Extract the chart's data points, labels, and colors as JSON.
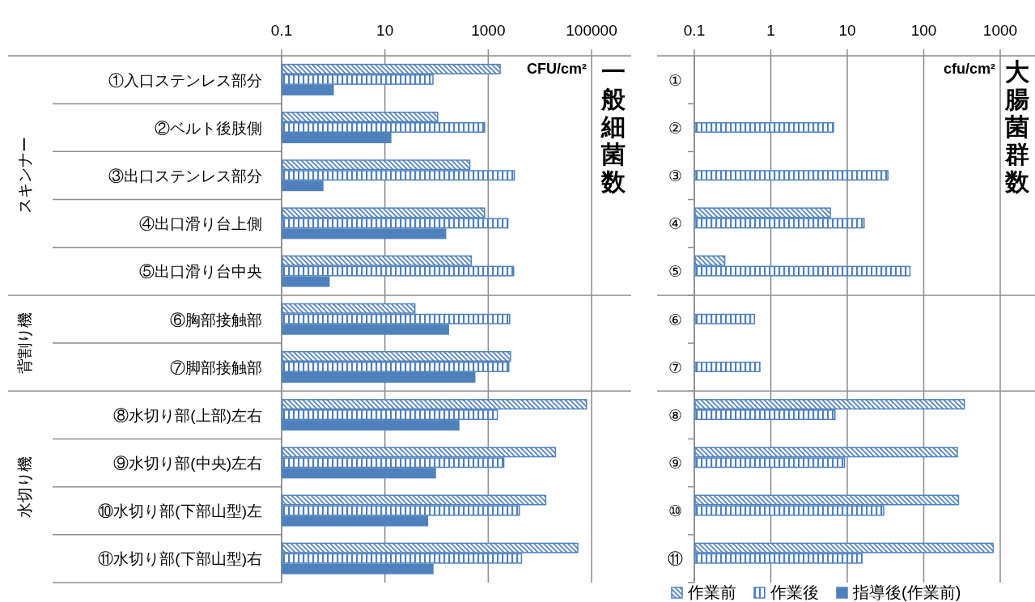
{
  "chart_data": [
    {
      "type": "bar",
      "orientation": "horizontal",
      "log": "x",
      "title": "一般細菌数",
      "xlabel": "CFU/cm²",
      "categories": [
        "①入口ステンレス部分",
        "②ベルト後肢側",
        "③出口ステンレス部分",
        "④出口滑り台上側",
        "⑤出口滑り台中央",
        "⑥胸部接触部",
        "⑦脚部接触部",
        "⑧水切り部(上部)左右",
        "⑨水切り部(中央)左右",
        "⑩水切り部(下部山型)左",
        "⑪水切り部(下部山型)右"
      ],
      "series": [
        {
          "color": "#4f81bd",
          "values": [
            1700,
            105,
            440,
            850,
            470,
            38,
            2700,
            80000,
            20000,
            13000,
            54000
          ]
        },
        {
          "color": "#4f81bd",
          "values": [
            85,
            850,
            3200,
            2400,
            3100,
            2600,
            2500,
            1500,
            2000,
            4000,
            4400
          ]
        },
        {
          "color": "#4f81bd",
          "values": [
            1.0,
            13,
            0.63,
            150,
            0.83,
            170,
            550,
            270,
            95,
            67,
            85
          ]
        }
      ],
      "xlim": [
        0.1,
        100000
      ],
      "xticks": [
        0.1,
        10,
        1000,
        100000
      ],
      "grid": "x",
      "annotations": [
        "スキンナー",
        "背割り機",
        "水切り機"
      ]
    },
    {
      "type": "bar",
      "orientation": "horizontal",
      "log": "x",
      "title": "大腸菌群数",
      "xlabel": "cfu/cm²",
      "categories": [
        "①",
        "②",
        "③",
        "④",
        "⑤",
        "⑥",
        "⑦",
        "⑧",
        "⑨",
        "⑩",
        "⑪"
      ],
      "series": [
        {
          "name": "作業前",
          "color": "#4f81bd",
          "values": [
            null,
            null,
            null,
            6.0,
            0.25,
            null,
            null,
            340,
            275,
            285,
            810
          ]
        },
        {
          "name": "作業後",
          "color": "#4f81bd",
          "values": [
            null,
            6.6,
            34,
            16.6,
            66,
            0.61,
            0.72,
            6.9,
            9.2,
            30,
            15.6
          ]
        },
        {
          "name": "指導後(作業前)",
          "color": "#4f81bd",
          "values": [
            null,
            null,
            null,
            null,
            null,
            null,
            null,
            null,
            null,
            null,
            null
          ]
        }
      ],
      "xlim": [
        0.1,
        1000
      ],
      "xticks": [
        0.1,
        1,
        10,
        100,
        1000
      ],
      "grid": "x",
      "legend": "bottom"
    }
  ]
}
